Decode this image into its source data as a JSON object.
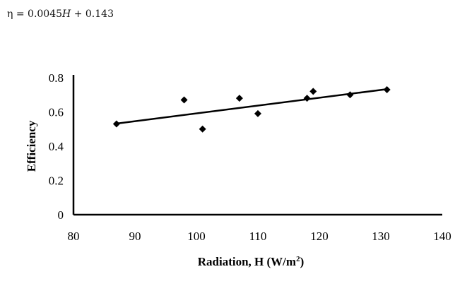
{
  "equation": {
    "lhs": "η",
    "eq": "=",
    "coef": "0.0045",
    "var": "H",
    "plus": "+",
    "intercept": "0.143"
  },
  "chart_data": {
    "type": "scatter",
    "xlabel": "Radiation, H (W/m²)",
    "ylabel": "Efficiency",
    "xlim": [
      80,
      140
    ],
    "ylim": [
      0,
      0.8
    ],
    "xticks": [
      80,
      90,
      100,
      110,
      120,
      130,
      140
    ],
    "yticks": [
      0,
      0.2,
      0.4,
      0.6,
      0.8
    ],
    "ytick_labels": [
      "0",
      "0.2",
      "0.4",
      "0.6",
      "0.8"
    ],
    "grid": false,
    "marker": "diamond",
    "color": "#000000",
    "points": [
      {
        "x": 87,
        "y": 0.53
      },
      {
        "x": 98,
        "y": 0.67
      },
      {
        "x": 101,
        "y": 0.5
      },
      {
        "x": 107,
        "y": 0.68
      },
      {
        "x": 110,
        "y": 0.59
      },
      {
        "x": 118,
        "y": 0.68
      },
      {
        "x": 119,
        "y": 0.72
      },
      {
        "x": 125,
        "y": 0.7
      },
      {
        "x": 131,
        "y": 0.73
      }
    ],
    "trendline": {
      "x": [
        87,
        131
      ],
      "y": [
        0.532,
        0.733
      ]
    }
  }
}
